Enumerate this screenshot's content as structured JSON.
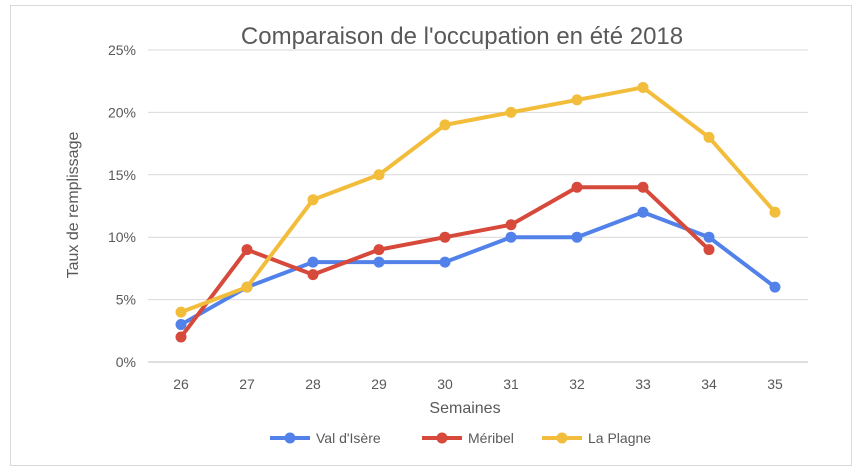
{
  "chart_data": {
    "type": "line",
    "title": "Comparaison de l'occupation en été 2018",
    "xlabel": "Semaines",
    "ylabel": "Taux de remplissage",
    "categories": [
      "26",
      "27",
      "28",
      "29",
      "30",
      "31",
      "32",
      "33",
      "34",
      "35"
    ],
    "y_ticks": [
      "0%",
      "5%",
      "10%",
      "15%",
      "20%",
      "25%"
    ],
    "ylim": [
      0,
      25
    ],
    "y_unit": "%",
    "grid": true,
    "legend_position": "bottom",
    "series": [
      {
        "name": "Val d'Isère",
        "color": "#5282e9",
        "values": [
          3,
          6,
          8,
          8,
          8,
          10,
          10,
          12,
          10,
          6
        ]
      },
      {
        "name": "Méribel",
        "color": "#d6493b",
        "values": [
          2,
          9,
          7,
          9,
          10,
          11,
          14,
          14,
          9,
          null
        ]
      },
      {
        "name": "La Plagne",
        "color": "#f3bd3c",
        "values": [
          4,
          6,
          13,
          15,
          19,
          20,
          21,
          22,
          18,
          12
        ]
      }
    ]
  }
}
